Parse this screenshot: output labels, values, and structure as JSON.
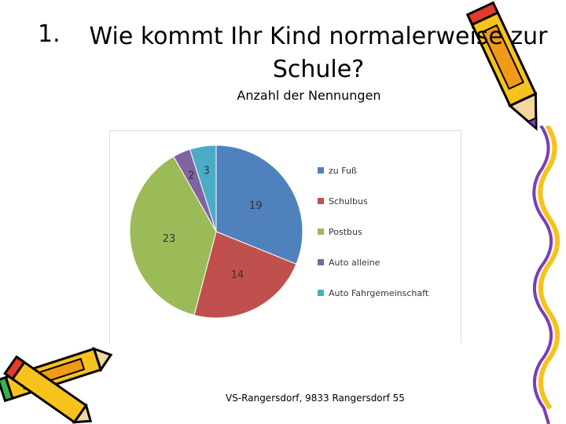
{
  "slide": {
    "number": "1.",
    "title_line1": "Wie kommt Ihr Kind normalerweise zur",
    "title_line2": "Schule?",
    "subtitle": "Anzahl der Nennungen",
    "footer": "VS-Rangersdorf, 9833 Rangersdorf 55"
  },
  "chart_data": {
    "type": "pie",
    "title": "Anzahl der Nennungen",
    "categories": [
      "zu Fuß",
      "Schulbus",
      "Postbus",
      "Auto alleine",
      "Auto Fahrgemeinschaft"
    ],
    "values": [
      19,
      14,
      23,
      2,
      3
    ],
    "colors": [
      "#4f81bd",
      "#c0504d",
      "#9bbb59",
      "#8064a2",
      "#4bacc6"
    ],
    "data_labels": [
      "19",
      "14",
      "23",
      "2",
      "3"
    ],
    "legend_position": "right"
  },
  "decor": {
    "right_icon": "pencil-icon",
    "left_icon": "crossed-pencils-icon",
    "strip_icon": "yellow-scribble-strip"
  }
}
